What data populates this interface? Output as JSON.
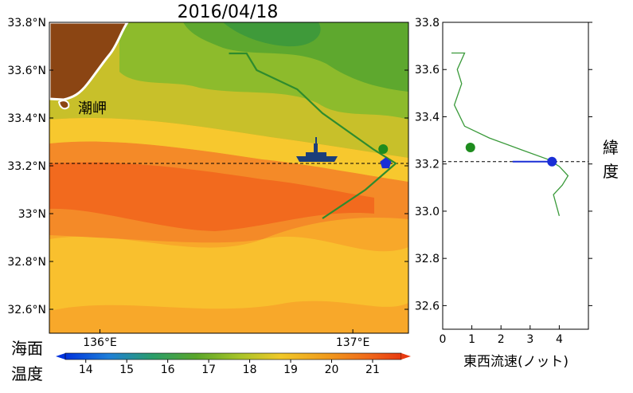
{
  "title": "2016/04/18",
  "map": {
    "lat_ticks": [
      {
        "value": 32.6,
        "label": "32.6°N"
      },
      {
        "value": 32.8,
        "label": "32.8°N"
      },
      {
        "value": 33.0,
        "label": "33°N"
      },
      {
        "value": 33.2,
        "label": "33.2°N"
      },
      {
        "value": 33.4,
        "label": "33.4°N"
      },
      {
        "value": 33.6,
        "label": "33.6°N"
      },
      {
        "value": 33.8,
        "label": "33.8°N"
      }
    ],
    "lon_ticks": [
      {
        "value": 136.0,
        "label": "136°E"
      },
      {
        "value": 137.0,
        "label": "137°E"
      }
    ],
    "place_label": "潮岬",
    "reference_lat": 33.21,
    "land_color": "#8B4513",
    "track_color": "#2e8b2e"
  },
  "colorbar": {
    "label_line1": "海面",
    "label_line2": "温度",
    "ticks": [
      "14",
      "15",
      "16",
      "17",
      "18",
      "19",
      "20",
      "21"
    ]
  },
  "profile": {
    "xlabel": "東西流速(ノット)",
    "x_ticks": [
      "0",
      "1",
      "2",
      "3",
      "4"
    ],
    "y_ticks": [
      "32.6",
      "32.8",
      "33.0",
      "33.2",
      "33.4",
      "33.6",
      "33.8"
    ],
    "side_label": "緯度"
  },
  "chart_data": {
    "type": "line",
    "title": "2016/04/18",
    "xlabel": "東西流速(ノット)",
    "ylabel": "緯度",
    "xlim": [
      0,
      5
    ],
    "ylim": [
      32.5,
      33.8
    ],
    "reference_latitude": 33.21,
    "series": [
      {
        "points": [
          {
            "x": 0.3,
            "y": 33.67
          },
          {
            "x": 0.75,
            "y": 33.67
          },
          {
            "x": 0.5,
            "y": 33.6
          },
          {
            "x": 0.65,
            "y": 33.54
          },
          {
            "x": 0.4,
            "y": 33.45
          },
          {
            "x": 0.75,
            "y": 33.36
          },
          {
            "x": 1.6,
            "y": 33.31
          },
          {
            "x": 2.7,
            "y": 33.26
          },
          {
            "x": 3.6,
            "y": 33.22
          },
          {
            "x": 4.0,
            "y": 33.19
          },
          {
            "x": 4.3,
            "y": 33.15
          },
          {
            "x": 4.1,
            "y": 33.11
          },
          {
            "x": 3.8,
            "y": 33.07
          },
          {
            "x": 4.0,
            "y": 32.98
          }
        ]
      }
    ],
    "markers": [
      {
        "shape": "circle",
        "color": "#1e8c1e",
        "x": 0.95,
        "y": 33.27
      },
      {
        "shape": "circle",
        "color": "#1a2fd6",
        "x": 3.75,
        "y": 33.21
      }
    ],
    "map_track": [
      {
        "lon": 136.51,
        "lat": 33.67
      },
      {
        "lon": 136.58,
        "lat": 33.67
      },
      {
        "lon": 136.62,
        "lat": 33.6
      },
      {
        "lon": 136.78,
        "lat": 33.52
      },
      {
        "lon": 136.88,
        "lat": 33.42
      },
      {
        "lon": 137.0,
        "lat": 33.33
      },
      {
        "lon": 137.08,
        "lat": 33.27
      },
      {
        "lon": 137.17,
        "lat": 33.21
      },
      {
        "lon": 137.05,
        "lat": 33.1
      },
      {
        "lon": 136.88,
        "lat": 32.98
      }
    ],
    "colorbar_range": [
      13.5,
      21.7
    ]
  }
}
